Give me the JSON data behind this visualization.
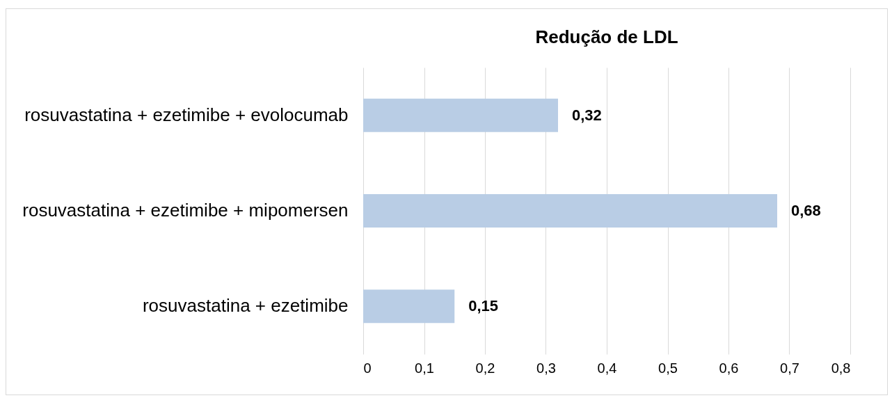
{
  "chart_data": {
    "type": "bar",
    "orientation": "horizontal",
    "title": "Redução de LDL",
    "categories": [
      "rosuvastatina + ezetimibe + evolocumab",
      "rosuvastatina + ezetimibe + mipomersen",
      "rosuvastatina + ezetimibe"
    ],
    "values": [
      0.32,
      0.68,
      0.15
    ],
    "color": "#b9cde5",
    "xlim": [
      0,
      0.8
    ],
    "xticks": [
      0,
      {
        "value": 0.1,
        "label": "0,1"
      },
      {
        "value": 0.2,
        "label": "0,2"
      },
      {
        "value": 0.3,
        "label": "0,3"
      },
      {
        "value": 0.4,
        "label": "0,4"
      },
      {
        "value": 0.5,
        "label": "0,5"
      },
      {
        "value": 0.6,
        "label": "0,6"
      },
      {
        "value": 0.7,
        "label": "0,7"
      },
      {
        "value": 0.8,
        "label": "0,8"
      }
    ],
    "grid": "x",
    "value_labels": [
      "0,32",
      "0,68",
      "0,15"
    ]
  }
}
